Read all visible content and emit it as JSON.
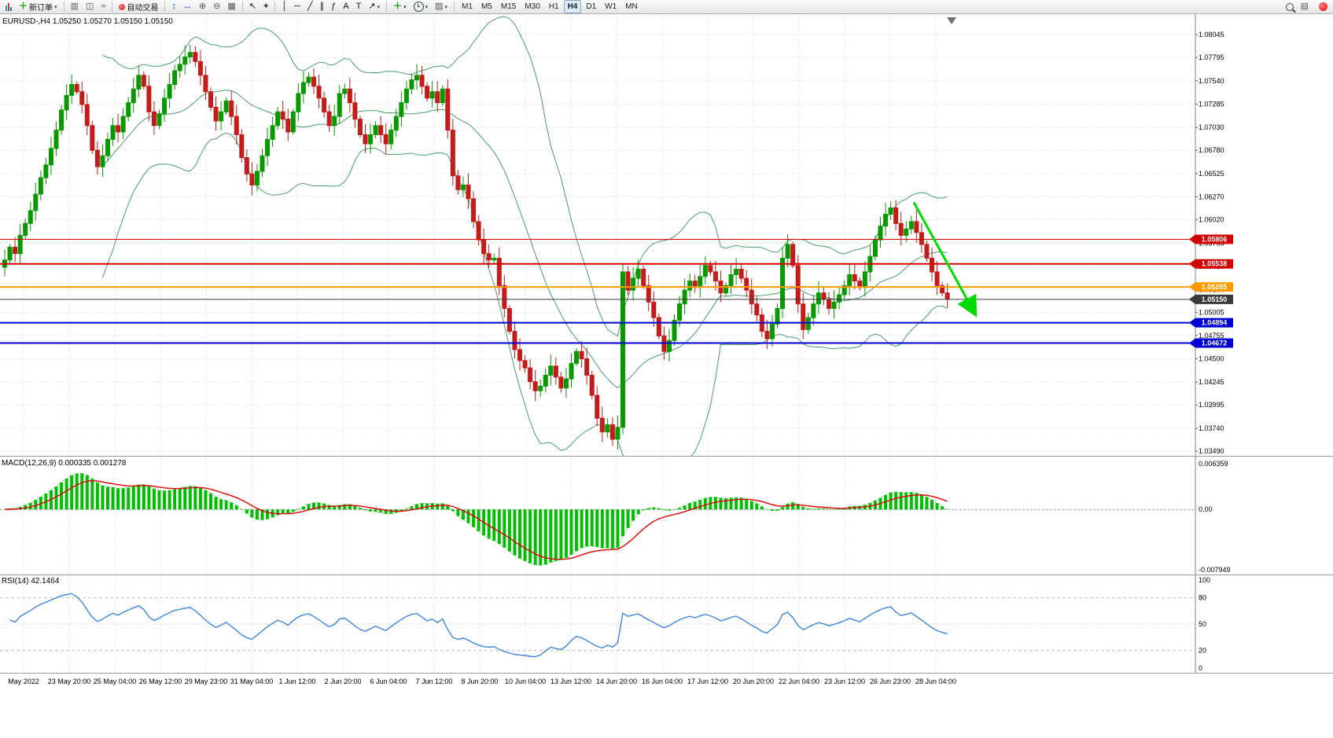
{
  "toolbar": {
    "new_order_label": "新订单",
    "auto_trading_label": "自动交易",
    "timeframes": [
      "M1",
      "M5",
      "M15",
      "M30",
      "H1",
      "H4",
      "D1",
      "W1",
      "MN"
    ],
    "active_timeframe": "H4"
  },
  "chart": {
    "header": "EURUSD-,H4 1.05250 1.05270 1.05150 1.05150",
    "price_axis": {
      "min": 1.0349,
      "max": 1.08045,
      "ticks": [
        "1.08045",
        "1.07795",
        "1.07540",
        "1.07285",
        "1.07030",
        "1.06780",
        "1.06525",
        "1.06270",
        "1.06020",
        "1.05765",
        "1.05510",
        "1.05255",
        "1.05005",
        "1.04755",
        "1.04500",
        "1.04245",
        "1.03995",
        "1.03740",
        "1.03490"
      ]
    },
    "levels": [
      {
        "price": 1.05806,
        "label": "1.05806",
        "color": "#D40000",
        "width": 1
      },
      {
        "price": 1.05538,
        "label": "1.05538",
        "color": "#D40000",
        "width": 2
      },
      {
        "price": 1.05285,
        "label": "1.05285",
        "color": "#FF9900",
        "width": 2
      },
      {
        "price": 1.0515,
        "label": "1.05150",
        "color": "#3A3A3A",
        "width": 1
      },
      {
        "price": 1.04894,
        "label": "1.04894",
        "color": "#0000D4",
        "width": 2
      },
      {
        "price": 1.04672,
        "label": "1.04672",
        "color": "#0000D4",
        "width": 2
      }
    ],
    "arrow": {
      "color": "#00DC00",
      "from_price": 1.0621,
      "to_price": 1.0502
    },
    "time_axis": [
      "May 2022",
      "23 May 20:00",
      "25 May 04:00",
      "26 May 12:00",
      "29 May 23:00",
      "31 May 04:00",
      "1 Jun 12:00",
      "2 Jun 20:00",
      "6 Jun 04:00",
      "7 Jun 12:00",
      "8 Jun 20:00",
      "10 Jun 04:00",
      "13 Jun 12:00",
      "14 Jun 20:00",
      "16 Jun 04:00",
      "17 Jun 12:00",
      "20 Jun 20:00",
      "22 Jun 04:00",
      "23 Jun 12:00",
      "26 Jun 23:00",
      "28 Jun 04:00"
    ]
  },
  "chart_data": {
    "type": "candlestick",
    "symbol": "EURUSD-",
    "timeframe": "H4",
    "open": "1.05250",
    "high": "1.05270",
    "low": "1.05150",
    "close": "1.05150",
    "up_color": "#089800",
    "down_color": "#C41B1B",
    "bollinger_color": "#4C9A6B",
    "closes": [
      1.0558,
      1.0572,
      1.0565,
      1.0585,
      1.0598,
      1.0612,
      1.063,
      1.0648,
      1.0662,
      1.068,
      1.07,
      1.0722,
      1.0738,
      1.075,
      1.0742,
      1.0728,
      1.0705,
      1.0678,
      1.066,
      1.0672,
      1.069,
      1.0705,
      1.0698,
      1.0715,
      1.073,
      1.0745,
      1.076,
      1.0748,
      1.072,
      1.0705,
      1.0718,
      1.0735,
      1.075,
      1.0765,
      1.0772,
      1.078,
      1.0785,
      1.0775,
      1.076,
      1.0742,
      1.0725,
      1.071,
      1.072,
      1.0732,
      1.0715,
      1.0695,
      1.067,
      1.0652,
      1.064,
      1.0655,
      1.0672,
      1.069,
      1.0705,
      1.072,
      1.0712,
      1.0698,
      1.072,
      1.074,
      1.0752,
      1.0758,
      1.0748,
      1.0735,
      1.072,
      1.0705,
      1.0715,
      1.074,
      1.0745,
      1.073,
      1.0712,
      1.0695,
      1.0685,
      1.0695,
      1.0705,
      1.0695,
      1.0685,
      1.07,
      1.0715,
      1.073,
      1.0745,
      1.0755,
      1.076,
      1.0748,
      1.0735,
      1.0742,
      1.073,
      1.0745,
      1.07,
      1.065,
      1.0635,
      1.064,
      1.0625,
      1.06,
      1.058,
      1.0565,
      1.0558,
      1.056,
      1.053,
      1.0505,
      1.048,
      1.046,
      1.0448,
      1.044,
      1.0425,
      1.0415,
      1.042,
      1.0432,
      1.0442,
      1.043,
      1.0418,
      1.0428,
      1.0445,
      1.0458,
      1.045,
      1.0432,
      1.041,
      1.0385,
      1.037,
      1.0378,
      1.0362,
      1.0375,
      1.0545,
      1.0525,
      1.0538,
      1.0548,
      1.053,
      1.0512,
      1.0495,
      1.0475,
      1.0458,
      1.047,
      1.0492,
      1.051,
      1.0525,
      1.0535,
      1.0528,
      1.054,
      1.0552,
      1.0545,
      1.0535,
      1.0522,
      1.053,
      1.0542,
      1.0548,
      1.0538,
      1.0525,
      1.051,
      1.0498,
      1.048,
      1.0472,
      1.0488,
      1.0505,
      1.056,
      1.0575,
      1.0552,
      1.051,
      1.0482,
      1.0495,
      1.051,
      1.0522,
      1.0515,
      1.0505,
      1.0512,
      1.052,
      1.053,
      1.0542,
      1.0535,
      1.0528,
      1.0545,
      1.0562,
      1.058,
      1.0595,
      1.0608,
      1.0615,
      1.0598,
      1.0585,
      1.0592,
      1.06,
      1.0588,
      1.0575,
      1.056,
      1.0545,
      1.053,
      1.0522,
      1.0515
    ],
    "indicators": {
      "macd": {
        "label": "MACD(12,26,9) 0.000335 0.001278",
        "fast": 12,
        "slow": 26,
        "signal": 9,
        "value": "0.000335",
        "signal_value": "0.001278",
        "scale_max": "0.006359",
        "scale_zero": "0.00",
        "scale_min": "-0.007949",
        "histogram_color": "#00BE00",
        "signal_color": "#E00000"
      },
      "rsi": {
        "label": "RSI(14) 42.1464",
        "period": 14,
        "value": "42.1464",
        "color": "#3E86D8",
        "scale": [
          "100",
          "80",
          "50",
          "20",
          "0"
        ],
        "levels": [
          80,
          50,
          20
        ]
      }
    }
  }
}
